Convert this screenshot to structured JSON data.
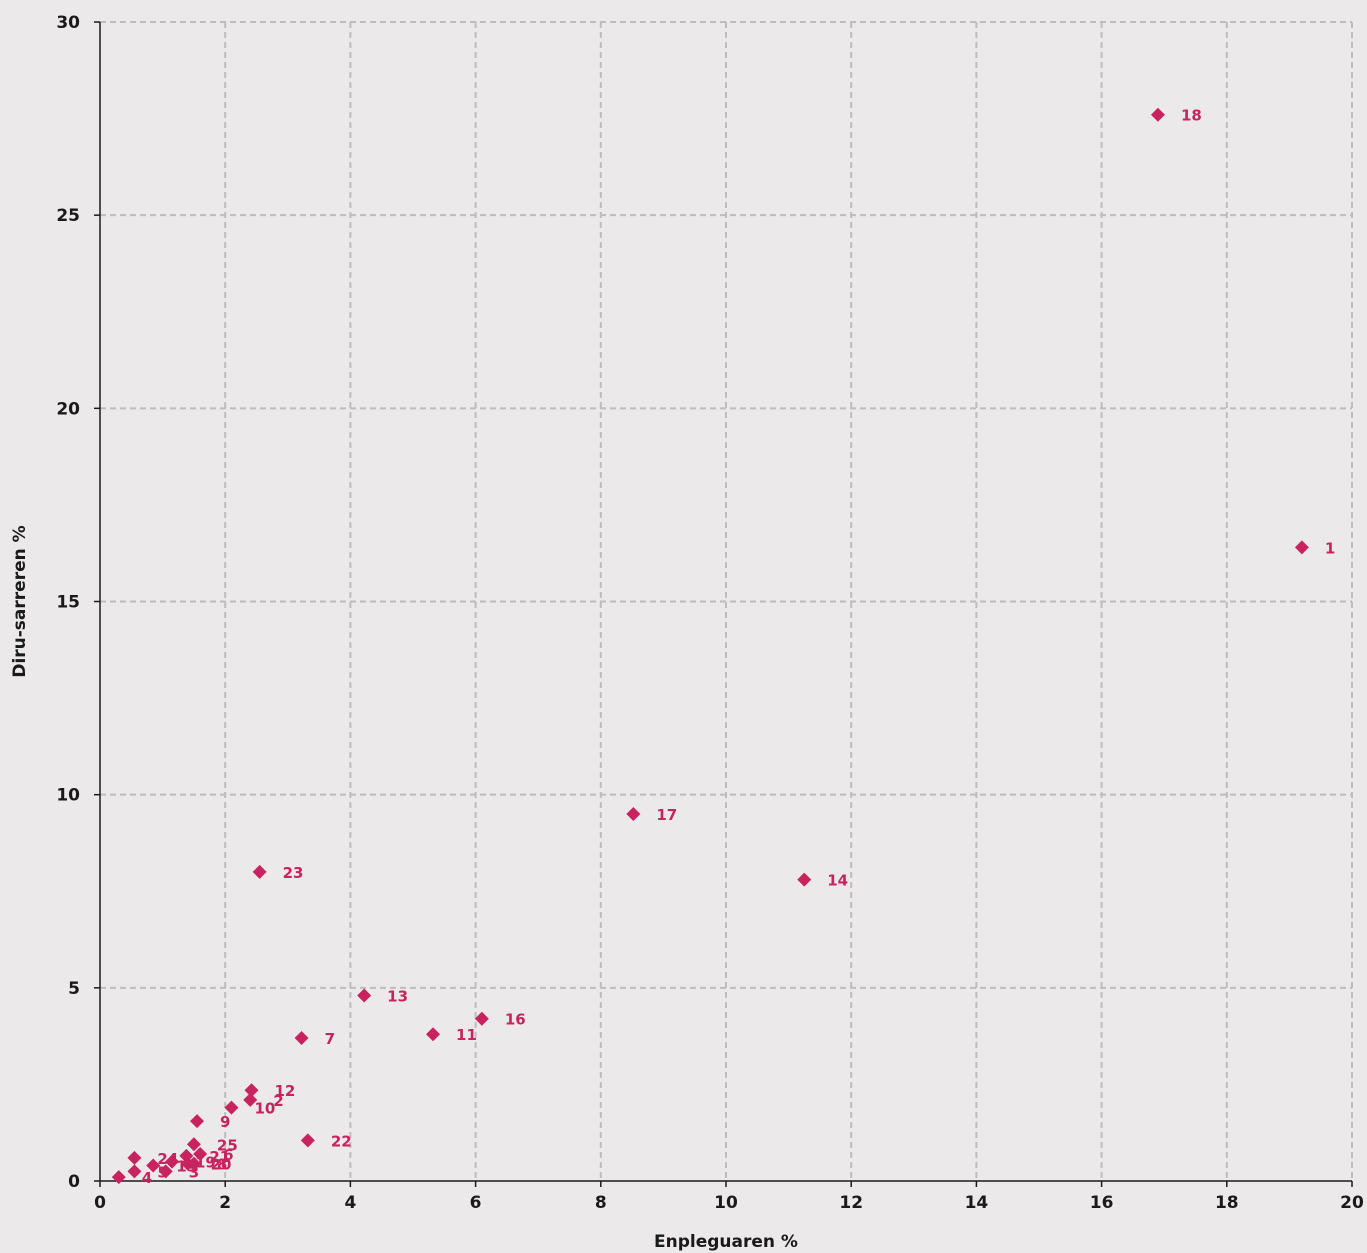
{
  "chart_data": {
    "type": "scatter",
    "title": "",
    "xlabel": "Enpleguaren %",
    "ylabel": "Diru-sarreren %",
    "xlim": [
      0,
      20
    ],
    "ylim": [
      0,
      30
    ],
    "x_ticks": [
      0,
      2,
      4,
      6,
      8,
      10,
      12,
      14,
      16,
      18,
      20
    ],
    "y_ticks": [
      0,
      5,
      10,
      15,
      20,
      25,
      30
    ],
    "grid": true,
    "legend": "none",
    "colors": {
      "marker": "#c8235f",
      "label": "#c8235f",
      "grid": "#bdbdbd",
      "axis": "#1a1a1a",
      "background": "#ebe9ea"
    },
    "points": [
      {
        "label": "1",
        "x": 19.2,
        "y": 16.4
      },
      {
        "label": "2",
        "x": 2.4,
        "y": 2.1
      },
      {
        "label": "3",
        "x": 1.05,
        "y": 0.25
      },
      {
        "label": "4",
        "x": 0.3,
        "y": 0.1
      },
      {
        "label": "5",
        "x": 0.55,
        "y": 0.25
      },
      {
        "label": "6",
        "x": 1.6,
        "y": 0.7
      },
      {
        "label": "7",
        "x": 3.22,
        "y": 3.7
      },
      {
        "label": "8",
        "x": 1.5,
        "y": 0.45
      },
      {
        "label": "9",
        "x": 1.55,
        "y": 1.55
      },
      {
        "label": "10",
        "x": 2.1,
        "y": 1.9
      },
      {
        "label": "11",
        "x": 5.32,
        "y": 3.8
      },
      {
        "label": "12",
        "x": 2.42,
        "y": 2.35
      },
      {
        "label": "13",
        "x": 4.22,
        "y": 4.8
      },
      {
        "label": "14",
        "x": 11.25,
        "y": 7.8
      },
      {
        "label": "15",
        "x": 0.85,
        "y": 0.4
      },
      {
        "label": "16",
        "x": 6.1,
        "y": 4.2
      },
      {
        "label": "17",
        "x": 8.52,
        "y": 9.5
      },
      {
        "label": "18",
        "x": 16.9,
        "y": 27.6
      },
      {
        "label": "19",
        "x": 1.15,
        "y": 0.5
      },
      {
        "label": "20",
        "x": 1.4,
        "y": 0.45
      },
      {
        "label": "21",
        "x": 1.38,
        "y": 0.65
      },
      {
        "label": "22",
        "x": 3.32,
        "y": 1.05
      },
      {
        "label": "23",
        "x": 2.55,
        "y": 8.0
      },
      {
        "label": "24",
        "x": 0.55,
        "y": 0.6
      },
      {
        "label": "25",
        "x": 1.5,
        "y": 0.95
      }
    ]
  }
}
